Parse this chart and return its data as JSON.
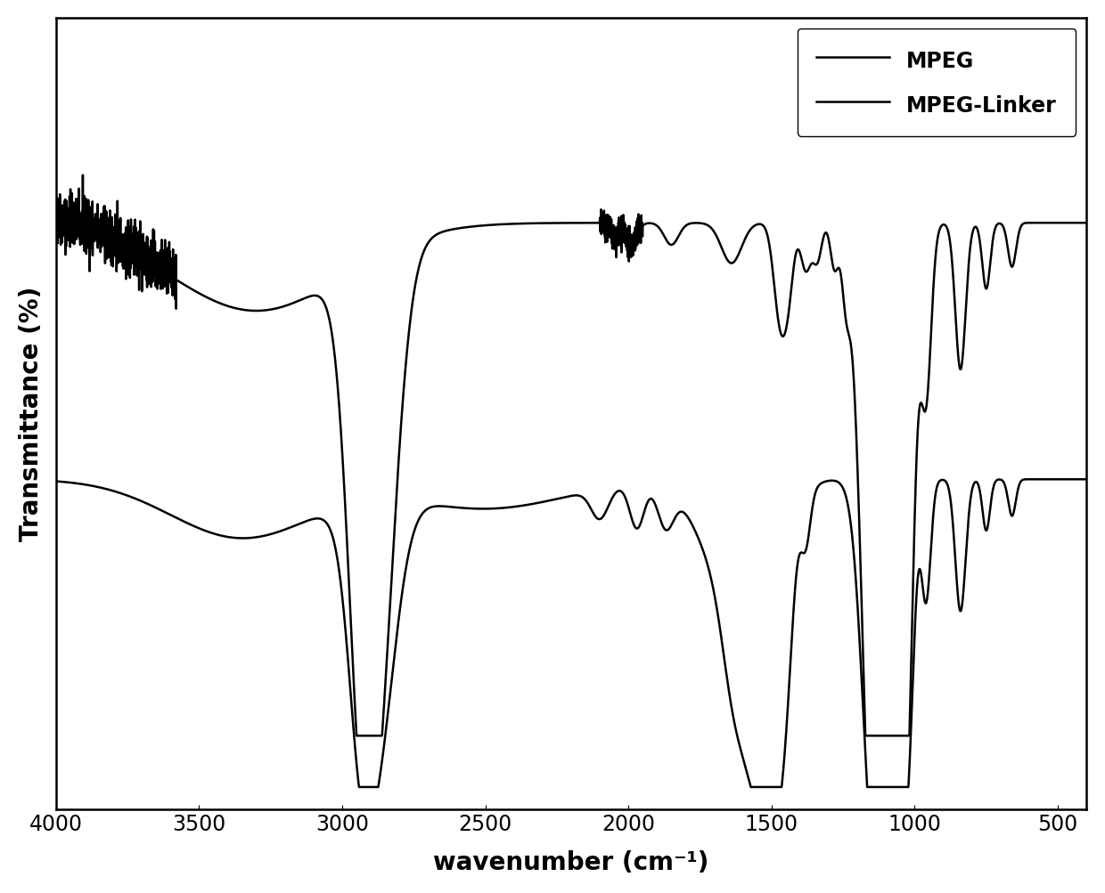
{
  "title": "",
  "xlabel": "wavenumber (cm⁻¹)",
  "ylabel": "Transmittance (%)",
  "xlim": [
    4000,
    400
  ],
  "legend_labels": [
    "MPEG",
    "MPEG-Linker"
  ],
  "line_color": "#000000",
  "line_width": 1.8,
  "background_color": "#ffffff",
  "xticks": [
    4000,
    3500,
    3000,
    2500,
    2000,
    1500,
    1000,
    500
  ],
  "font_size_axis_label": 20,
  "font_size_tick": 17,
  "font_size_legend": 17
}
